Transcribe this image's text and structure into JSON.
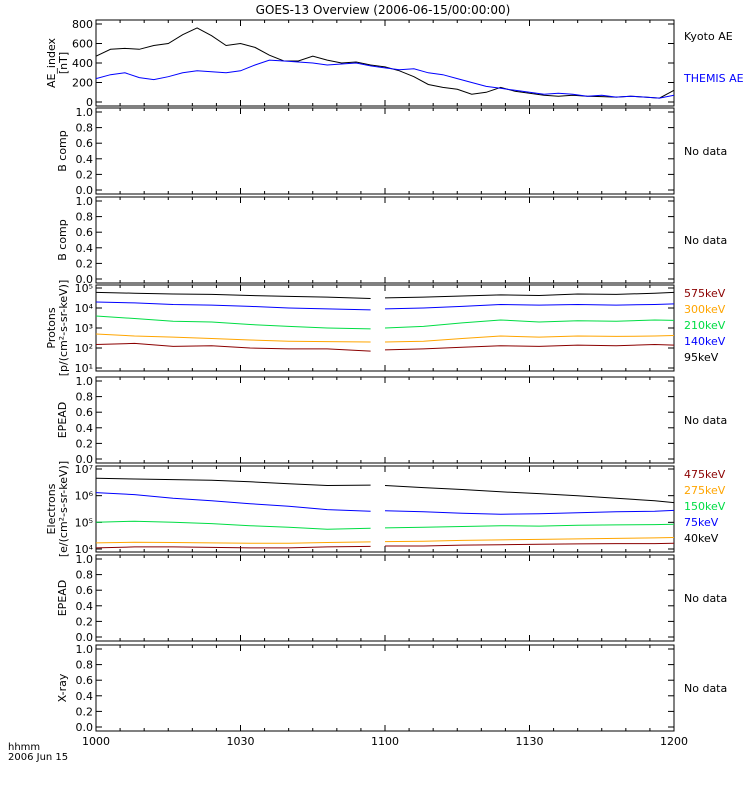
{
  "title": "GOES-13 Overview (2006-06-15/00:00:00)",
  "x_axis": {
    "corner_label_1": "hhmm",
    "corner_label_2": "2006 Jun 15",
    "tick_labels": [
      "1000",
      "1030",
      "1100",
      "1130",
      "1200"
    ],
    "range": [
      "10:00",
      "12:00"
    ]
  },
  "no_data_text": "No data",
  "colors": {
    "black": "#000000",
    "blue": "#0000ff",
    "green": "#00dd44",
    "orange": "#ffa500",
    "darkred": "#8b0000"
  },
  "chart_data": [
    {
      "id": "ae",
      "type": "line",
      "ylabel_lines": [
        "AE_index",
        "[nT]"
      ],
      "ylim": [
        0,
        800
      ],
      "yticks": [
        0,
        200,
        400,
        600,
        800
      ],
      "x_units": "minutes after 10:00",
      "series": [
        {
          "name": "Kyoto AE",
          "color": "#000000",
          "x": [
            0,
            3,
            6,
            9,
            12,
            15,
            18,
            21,
            24,
            27,
            30,
            33,
            36,
            39,
            42,
            45,
            48,
            51,
            54,
            57,
            60,
            63,
            66,
            69,
            72,
            75,
            78,
            81,
            84,
            87,
            90,
            93,
            96,
            99,
            102,
            105,
            108,
            111,
            114,
            117,
            120
          ],
          "y": [
            470,
            540,
            550,
            540,
            580,
            600,
            690,
            760,
            680,
            580,
            600,
            560,
            480,
            420,
            420,
            470,
            430,
            400,
            410,
            380,
            360,
            320,
            260,
            180,
            150,
            130,
            80,
            100,
            150,
            110,
            90,
            70,
            60,
            70,
            60,
            55,
            50,
            60,
            50,
            40,
            120
          ]
        },
        {
          "name": "THEMIS AE",
          "color": "#0000ff",
          "x": [
            0,
            3,
            6,
            9,
            12,
            15,
            18,
            21,
            24,
            27,
            30,
            33,
            36,
            39,
            42,
            45,
            48,
            51,
            54,
            57,
            60,
            63,
            66,
            69,
            72,
            75,
            78,
            81,
            84,
            87,
            90,
            93,
            96,
            99,
            102,
            105,
            108,
            111,
            114,
            117,
            120
          ],
          "y": [
            240,
            280,
            300,
            250,
            230,
            260,
            300,
            320,
            310,
            300,
            320,
            380,
            430,
            420,
            410,
            400,
            380,
            390,
            400,
            370,
            350,
            330,
            340,
            300,
            280,
            240,
            200,
            160,
            140,
            120,
            100,
            80,
            90,
            80,
            60,
            70,
            50,
            60,
            50,
            40,
            70
          ]
        }
      ]
    },
    {
      "id": "b1",
      "type": "line",
      "ylabel_lines": [
        "B comp"
      ],
      "ylim": [
        0,
        1
      ],
      "ytick_labels": [
        "0.0",
        "0.2",
        "0.4",
        "0.6",
        "0.8",
        "1.0"
      ],
      "no_data": true
    },
    {
      "id": "b2",
      "type": "line",
      "ylabel_lines": [
        "B comp"
      ],
      "ylim": [
        0,
        1
      ],
      "ytick_labels": [
        "0.0",
        "0.2",
        "0.4",
        "0.6",
        "0.8",
        "1.0"
      ],
      "no_data": true
    },
    {
      "id": "protons",
      "type": "line",
      "ylabel_lines": [
        "Protons",
        "[p/(cm²-s-sr-keV)]"
      ],
      "yscale": "log",
      "ylim": [
        10,
        100000
      ],
      "ytick_labels": [
        "10¹",
        "10²",
        "10³",
        "10⁴",
        "10⁵"
      ],
      "x_units": "minutes after 10:00",
      "gap": [
        58,
        60
      ],
      "series": [
        {
          "name": "575keV",
          "color": "#8b0000",
          "x": [
            0,
            8,
            16,
            24,
            32,
            40,
            48,
            57,
            60,
            68,
            76,
            84,
            92,
            100,
            108,
            116,
            120
          ],
          "y": [
            150,
            170,
            120,
            130,
            100,
            90,
            90,
            70,
            80,
            90,
            110,
            130,
            120,
            140,
            130,
            150,
            140
          ]
        },
        {
          "name": "300keV",
          "color": "#ffa500",
          "x": [
            0,
            8,
            16,
            24,
            32,
            40,
            48,
            57,
            60,
            68,
            76,
            84,
            92,
            100,
            108,
            116,
            120
          ],
          "y": [
            500,
            400,
            350,
            300,
            250,
            220,
            210,
            200,
            200,
            220,
            300,
            400,
            350,
            400,
            380,
            400,
            420
          ]
        },
        {
          "name": "210keV",
          "color": "#00dd44",
          "x": [
            0,
            8,
            16,
            24,
            32,
            40,
            48,
            57,
            60,
            68,
            76,
            84,
            92,
            100,
            108,
            116,
            120
          ],
          "y": [
            4000,
            3000,
            2200,
            2000,
            1500,
            1200,
            1000,
            900,
            1000,
            1200,
            1800,
            2500,
            2000,
            2300,
            2200,
            2500,
            2400
          ]
        },
        {
          "name": "140keV",
          "color": "#0000ff",
          "x": [
            0,
            8,
            16,
            24,
            32,
            40,
            48,
            57,
            60,
            68,
            76,
            84,
            92,
            100,
            108,
            116,
            120
          ],
          "y": [
            20000,
            18000,
            15000,
            14000,
            12000,
            10000,
            9000,
            8000,
            9000,
            10000,
            12000,
            15000,
            14000,
            15000,
            14000,
            15000,
            16000
          ]
        },
        {
          "name": "95keV",
          "color": "#000000",
          "x": [
            0,
            8,
            16,
            24,
            32,
            40,
            48,
            57,
            60,
            68,
            76,
            84,
            92,
            100,
            108,
            116,
            120
          ],
          "y": [
            60000,
            55000,
            50000,
            48000,
            42000,
            38000,
            35000,
            30000,
            32000,
            35000,
            40000,
            45000,
            42000,
            50000,
            48000,
            55000,
            60000
          ]
        }
      ]
    },
    {
      "id": "epead1",
      "type": "line",
      "ylabel_lines": [
        "EPEAD"
      ],
      "ylim": [
        0,
        1
      ],
      "ytick_labels": [
        "0.0",
        "0.2",
        "0.4",
        "0.6",
        "0.8",
        "1.0"
      ],
      "no_data": true
    },
    {
      "id": "electrons",
      "type": "line",
      "ylabel_lines": [
        "Electrons",
        "[e/(cm²-s-sr-keV)]"
      ],
      "yscale": "log",
      "ylim": [
        10000,
        10000000
      ],
      "ytick_labels": [
        "10⁴",
        "10⁵",
        "10⁶",
        "10⁷"
      ],
      "x_units": "minutes after 10:00",
      "gap": [
        58,
        60
      ],
      "series": [
        {
          "name": "475keV",
          "color": "#8b0000",
          "x": [
            0,
            8,
            16,
            24,
            32,
            40,
            48,
            57,
            60,
            68,
            76,
            84,
            92,
            100,
            108,
            116,
            120
          ],
          "y": [
            11000,
            12000,
            12000,
            11500,
            11000,
            11000,
            12000,
            12500,
            13000,
            13000,
            14000,
            14500,
            15000,
            15500,
            16000,
            16000,
            16500
          ]
        },
        {
          "name": "275keV",
          "color": "#ffa500",
          "x": [
            0,
            8,
            16,
            24,
            32,
            40,
            48,
            57,
            60,
            68,
            76,
            84,
            92,
            100,
            108,
            116,
            120
          ],
          "y": [
            17000,
            18000,
            17500,
            17000,
            16500,
            16500,
            17500,
            18500,
            19000,
            19500,
            21000,
            22000,
            23000,
            24000,
            25000,
            26000,
            27000
          ]
        },
        {
          "name": "150keV",
          "color": "#00dd44",
          "x": [
            0,
            8,
            16,
            24,
            32,
            40,
            48,
            57,
            60,
            68,
            76,
            84,
            92,
            100,
            108,
            116,
            120
          ],
          "y": [
            100000,
            110000,
            100000,
            90000,
            75000,
            65000,
            55000,
            60000,
            62000,
            65000,
            70000,
            75000,
            72000,
            78000,
            80000,
            82000,
            85000
          ]
        },
        {
          "name": "75keV",
          "color": "#0000ff",
          "x": [
            0,
            8,
            16,
            24,
            32,
            40,
            48,
            57,
            60,
            68,
            76,
            84,
            92,
            100,
            108,
            116,
            120
          ],
          "y": [
            1300000,
            1100000,
            800000,
            650000,
            500000,
            400000,
            300000,
            260000,
            270000,
            250000,
            220000,
            200000,
            210000,
            230000,
            250000,
            260000,
            280000
          ]
        },
        {
          "name": "40keV",
          "color": "#000000",
          "x": [
            0,
            8,
            16,
            24,
            32,
            40,
            48,
            57,
            60,
            68,
            76,
            84,
            92,
            100,
            108,
            116,
            120
          ],
          "y": [
            4500000,
            4200000,
            4000000,
            3800000,
            3300000,
            2800000,
            2400000,
            2500000,
            2400000,
            2000000,
            1700000,
            1400000,
            1200000,
            1000000,
            800000,
            650000,
            550000
          ]
        }
      ]
    },
    {
      "id": "epead2",
      "type": "line",
      "ylabel_lines": [
        "EPEAD"
      ],
      "ylim": [
        0,
        1
      ],
      "ytick_labels": [
        "0.0",
        "0.2",
        "0.4",
        "0.6",
        "0.8",
        "1.0"
      ],
      "no_data": true
    },
    {
      "id": "xray",
      "type": "line",
      "ylabel_lines": [
        "X-ray"
      ],
      "ylim": [
        0,
        1
      ],
      "ytick_labels": [
        "0.0",
        "0.2",
        "0.4",
        "0.6",
        "0.8",
        "1.0"
      ],
      "no_data": true
    }
  ]
}
